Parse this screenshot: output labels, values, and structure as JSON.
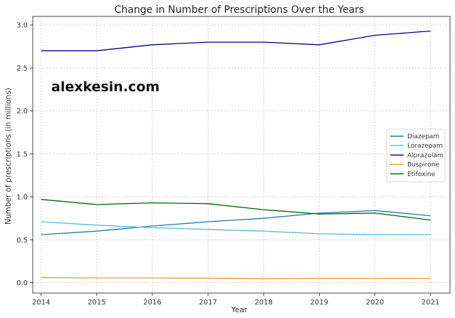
{
  "chart_data": {
    "type": "line",
    "title": "Change in Number of Prescriptions Over the Years",
    "xlabel": "Year",
    "ylabel": "Number of prescriptions (in millions)",
    "x": [
      2014,
      2015,
      2016,
      2017,
      2018,
      2019,
      2020,
      2021
    ],
    "xlim": [
      2013.85,
      2021.35
    ],
    "ylim": [
      -0.12,
      3.1
    ],
    "yticks": [
      "0.0",
      "0.5",
      "1.0",
      "1.5",
      "2.0",
      "2.5",
      "3.0"
    ],
    "ytick_values": [
      0,
      0.5,
      1.0,
      1.5,
      2.0,
      2.5,
      3.0
    ],
    "xticks": [
      "2014",
      "2015",
      "2016",
      "2017",
      "2018",
      "2019",
      "2020",
      "2021"
    ],
    "grid": true,
    "legend_position": "right",
    "series": [
      {
        "name": "Diazepam",
        "color": "#1f77b4",
        "values": [
          0.56,
          0.6,
          0.66,
          0.71,
          0.75,
          0.81,
          0.84,
          0.78
        ]
      },
      {
        "name": "Lorazepam",
        "color": "#5ab4dc",
        "values": [
          0.71,
          0.67,
          0.64,
          0.62,
          0.6,
          0.57,
          0.56,
          0.56
        ]
      },
      {
        "name": "Alprazolam",
        "color": "#000080",
        "values": [
          2.7,
          2.7,
          2.77,
          2.8,
          2.8,
          2.77,
          2.88,
          2.93
        ]
      },
      {
        "name": "Buspirone",
        "color": "#daa520",
        "values": [
          0.06,
          0.055,
          0.055,
          0.053,
          0.048,
          0.05,
          0.05,
          0.05
        ]
      },
      {
        "name": "Etifoxine",
        "color": "#006400",
        "values": [
          0.97,
          0.91,
          0.93,
          0.92,
          0.85,
          0.8,
          0.81,
          0.73
        ]
      }
    ]
  },
  "watermark": {
    "text": "alexkesin.com"
  }
}
